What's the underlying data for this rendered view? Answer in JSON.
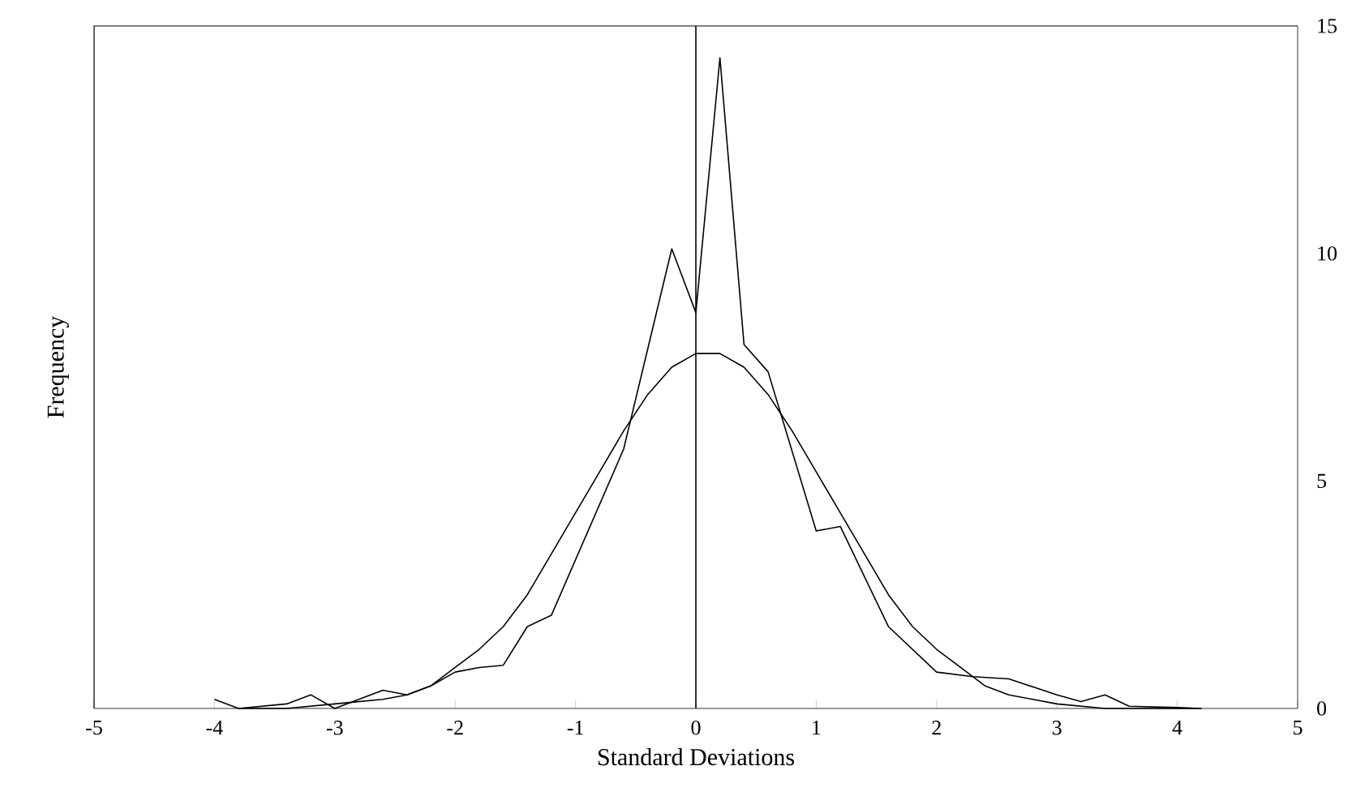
{
  "chart_data": {
    "type": "line",
    "xlabel": "Standard Deviations",
    "ylabel": "Frequency",
    "xlim": [
      -5,
      5
    ],
    "xticks": [
      -5,
      -4,
      -3,
      -2,
      -1,
      0,
      1,
      2,
      3,
      4,
      5
    ],
    "ylim": [
      0,
      15
    ],
    "yticks": [
      0,
      5,
      10,
      15
    ],
    "series": [
      {
        "color": "#000000",
        "x": [
          -4.0,
          -3.8,
          -3.6,
          -3.4,
          -3.2,
          -3.0,
          -2.8,
          -2.6,
          -2.4,
          -2.2,
          -2.0,
          -1.8,
          -1.6,
          -1.4,
          -1.2,
          -0.6,
          -0.4,
          -0.2,
          0.0,
          0.2,
          0.4,
          0.6,
          1.0,
          1.2,
          1.6,
          2.0,
          2.3,
          2.6,
          3.0,
          3.2,
          3.4,
          3.6,
          4.0,
          4.2
        ],
        "values": [
          0.2,
          0.0,
          0.05,
          0.1,
          0.3,
          0.0,
          0.2,
          0.4,
          0.3,
          0.5,
          0.8,
          0.9,
          0.95,
          1.8,
          2.05,
          5.7,
          7.9,
          10.1,
          8.7,
          14.3,
          8.0,
          7.4,
          3.9,
          4.0,
          1.8,
          0.8,
          0.7,
          0.65,
          0.3,
          0.15,
          0.3,
          0.05,
          0.02,
          0.0
        ]
      },
      {
        "color": "#000000",
        "x": [
          -3.8,
          -3.4,
          -3.0,
          -2.6,
          -2.4,
          -2.2,
          -2.0,
          -1.8,
          -1.6,
          -1.4,
          -1.2,
          -1.0,
          -0.8,
          -0.6,
          -0.4,
          -0.2,
          0.0,
          0.2,
          0.4,
          0.6,
          0.8,
          1.0,
          1.2,
          1.4,
          1.6,
          1.8,
          2.0,
          2.2,
          2.4,
          2.6,
          2.8,
          3.0,
          3.4,
          3.8,
          4.2
        ],
        "values": [
          0.0,
          0.0,
          0.1,
          0.2,
          0.3,
          0.5,
          0.9,
          1.3,
          1.8,
          2.5,
          3.4,
          4.3,
          5.2,
          6.1,
          6.9,
          7.5,
          7.8,
          7.8,
          7.5,
          6.9,
          6.1,
          5.2,
          4.3,
          3.4,
          2.5,
          1.8,
          1.3,
          0.9,
          0.5,
          0.3,
          0.2,
          0.1,
          0.0,
          0.0,
          0.0
        ]
      }
    ],
    "ref_lines": [
      {
        "axis": "x",
        "value": 0,
        "color": "#000000"
      }
    ]
  }
}
